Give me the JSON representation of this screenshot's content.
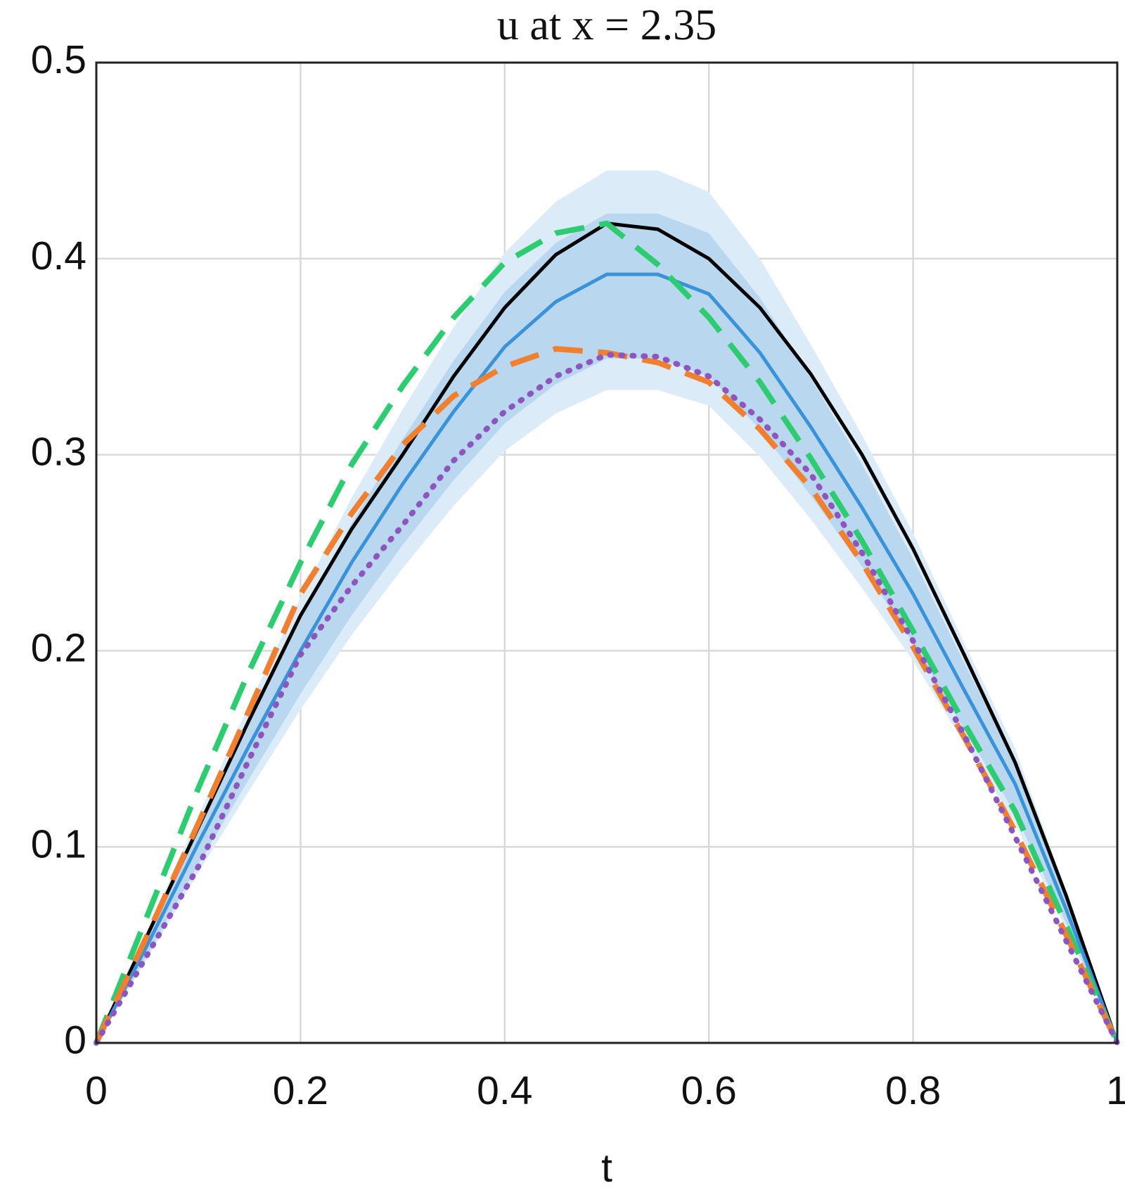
{
  "chart_data": {
    "type": "line",
    "title": "u at x = 2.35",
    "xlabel": "t",
    "x": [
      0,
      0.05,
      0.1,
      0.15,
      0.2,
      0.25,
      0.3,
      0.35,
      0.4,
      0.45,
      0.5,
      0.55,
      0.6,
      0.65,
      0.7,
      0.75,
      0.8,
      0.85,
      0.9,
      0.95,
      1
    ],
    "bands": [
      {
        "color": "#dcebf8",
        "upper": [
          0,
          0.057,
          0.116,
          0.173,
          0.227,
          0.278,
          0.323,
          0.365,
          0.403,
          0.429,
          0.445,
          0.445,
          0.434,
          0.4,
          0.356,
          0.31,
          0.26,
          0.204,
          0.15,
          0.077,
          0
        ],
        "lower": [
          0,
          0.043,
          0.087,
          0.129,
          0.17,
          0.208,
          0.242,
          0.274,
          0.302,
          0.321,
          0.333,
          0.333,
          0.325,
          0.299,
          0.267,
          0.232,
          0.195,
          0.153,
          0.112,
          0.058,
          0
        ]
      },
      {
        "color": "#b9d8f0",
        "upper": [
          0,
          0.054,
          0.11,
          0.164,
          0.216,
          0.265,
          0.308,
          0.348,
          0.383,
          0.408,
          0.423,
          0.423,
          0.413,
          0.38,
          0.339,
          0.295,
          0.247,
          0.194,
          0.143,
          0.073,
          0
        ],
        "lower": [
          0,
          0.045,
          0.091,
          0.135,
          0.178,
          0.218,
          0.254,
          0.287,
          0.316,
          0.336,
          0.349,
          0.349,
          0.34,
          0.313,
          0.279,
          0.243,
          0.204,
          0.16,
          0.117,
          0.061,
          0
        ]
      }
    ],
    "series": [
      {
        "color": "#000000",
        "style": "solid",
        "values": [
          0,
          0.055,
          0.11,
          0.165,
          0.218,
          0.262,
          0.3,
          0.34,
          0.375,
          0.402,
          0.418,
          0.415,
          0.4,
          0.375,
          0.341,
          0.3,
          0.252,
          0.198,
          0.143,
          0.075,
          0
        ]
      },
      {
        "color": "#3a93d8",
        "style": "solid",
        "values": [
          0,
          0.05,
          0.102,
          0.152,
          0.2,
          0.245,
          0.285,
          0.322,
          0.355,
          0.378,
          0.392,
          0.392,
          0.382,
          0.352,
          0.314,
          0.273,
          0.229,
          0.18,
          0.132,
          0.068,
          0
        ]
      },
      {
        "color": "#2ecc71",
        "style": "dashed",
        "values": [
          0,
          0.065,
          0.13,
          0.19,
          0.245,
          0.295,
          0.335,
          0.37,
          0.398,
          0.413,
          0.418,
          0.397,
          0.37,
          0.337,
          0.298,
          0.256,
          0.21,
          0.163,
          0.118,
          0.06,
          0
        ]
      },
      {
        "color": "#f07f30",
        "style": "dashed",
        "values": [
          0,
          0.055,
          0.112,
          0.17,
          0.229,
          0.27,
          0.305,
          0.33,
          0.345,
          0.354,
          0.352,
          0.347,
          0.337,
          0.313,
          0.283,
          0.245,
          0.202,
          0.156,
          0.108,
          0.055,
          0
        ]
      },
      {
        "color": "#8e55bf",
        "style": "dotted",
        "values": [
          0,
          0.045,
          0.09,
          0.145,
          0.198,
          0.233,
          0.264,
          0.297,
          0.322,
          0.34,
          0.351,
          0.35,
          0.34,
          0.318,
          0.29,
          0.25,
          0.205,
          0.157,
          0.105,
          0.052,
          0
        ]
      }
    ],
    "xlim": [
      0,
      1
    ],
    "xticks": [
      0,
      0.2,
      0.4,
      0.6,
      0.8,
      1
    ],
    "ylim": [
      0,
      0.5
    ],
    "yticks": [
      0,
      0.1,
      0.2,
      0.3,
      0.4,
      0.5
    ],
    "grid": true
  }
}
